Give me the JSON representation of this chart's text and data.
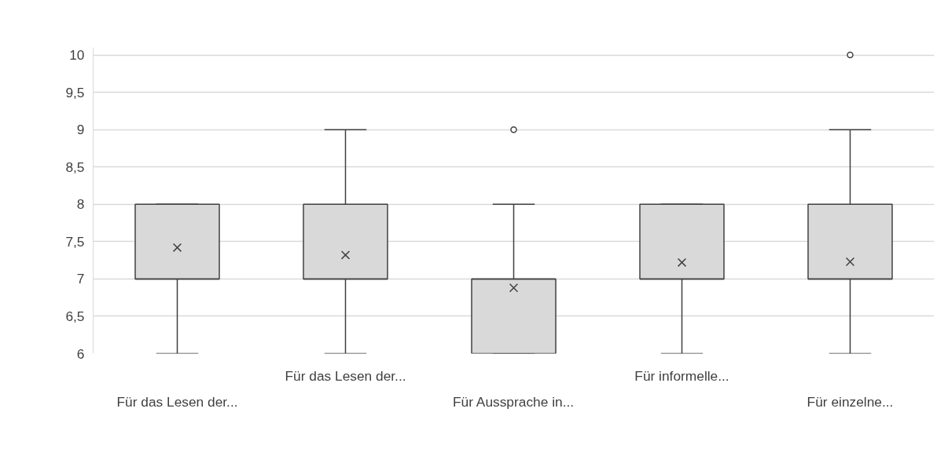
{
  "chart_data": {
    "type": "box",
    "categories": [
      "Für das Lesen der...",
      "Für das Lesen der...",
      "Für Aussprache in...",
      "Für informelle...",
      "Für einzelne..."
    ],
    "boxes": [
      {
        "low": 6,
        "q1": 7,
        "median": 7,
        "q3": 8,
        "high": 8,
        "mean": 7.42
      },
      {
        "low": 6,
        "q1": 7,
        "median": 7,
        "q3": 8,
        "high": 9,
        "mean": 7.32
      },
      {
        "low": 6,
        "q1": 6,
        "median": 7,
        "q3": 7,
        "high": 8,
        "mean": 6.88,
        "outliers": [
          9
        ]
      },
      {
        "low": 6,
        "q1": 7,
        "median": 7,
        "q3": 8,
        "high": 8,
        "mean": 7.22
      },
      {
        "low": 6,
        "q1": 7,
        "median": 7,
        "q3": 8,
        "high": 9,
        "mean": 7.23,
        "outliers": [
          10
        ]
      }
    ],
    "color": "#d9d9d9",
    "ylim": [
      6,
      10.1
    ],
    "yticks": [
      6,
      {
        "value": 6.5,
        "label": "6,5"
      },
      7,
      {
        "value": 7.5,
        "label": "7,5"
      },
      8,
      {
        "value": 8.5,
        "label": "8,5"
      },
      9,
      {
        "value": 9.5,
        "label": "9,5"
      },
      10
    ],
    "grid": "y"
  }
}
